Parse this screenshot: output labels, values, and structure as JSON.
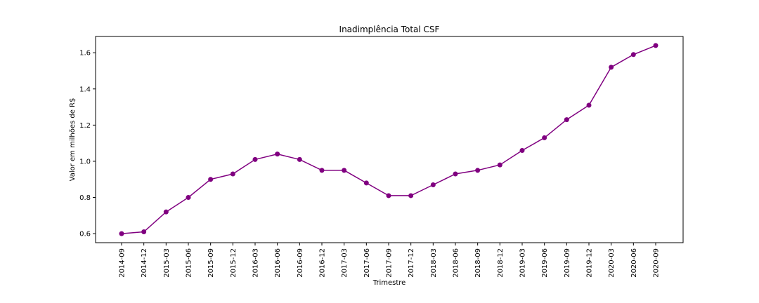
{
  "chart_data": {
    "type": "line",
    "title": "Inadimplência Total CSF",
    "xlabel": "Trimestre",
    "ylabel": "Valor em milhões de R$",
    "ylim": [
      0.55,
      1.69
    ],
    "yticks": [
      "0.6",
      "0.8",
      "1.0",
      "1.2",
      "1.4",
      "1.6"
    ],
    "grid": false,
    "color": "#800080",
    "categories": [
      "2014-09",
      "2014-12",
      "2015-03",
      "2015-06",
      "2015-09",
      "2015-12",
      "2016-03",
      "2016-06",
      "2016-09",
      "2016-12",
      "2017-03",
      "2017-06",
      "2017-09",
      "2017-12",
      "2018-03",
      "2018-06",
      "2018-09",
      "2018-12",
      "2019-03",
      "2019-06",
      "2019-09",
      "2019-12",
      "2020-03",
      "2020-06",
      "2020-09"
    ],
    "series": [
      {
        "values": [
          0.6,
          0.61,
          0.72,
          0.8,
          0.9,
          0.93,
          1.01,
          1.04,
          1.01,
          0.95,
          0.95,
          0.88,
          0.81,
          0.81,
          0.87,
          0.93,
          0.95,
          0.98,
          1.06,
          1.13,
          1.23,
          1.31,
          1.52,
          1.59,
          1.64
        ]
      }
    ]
  }
}
